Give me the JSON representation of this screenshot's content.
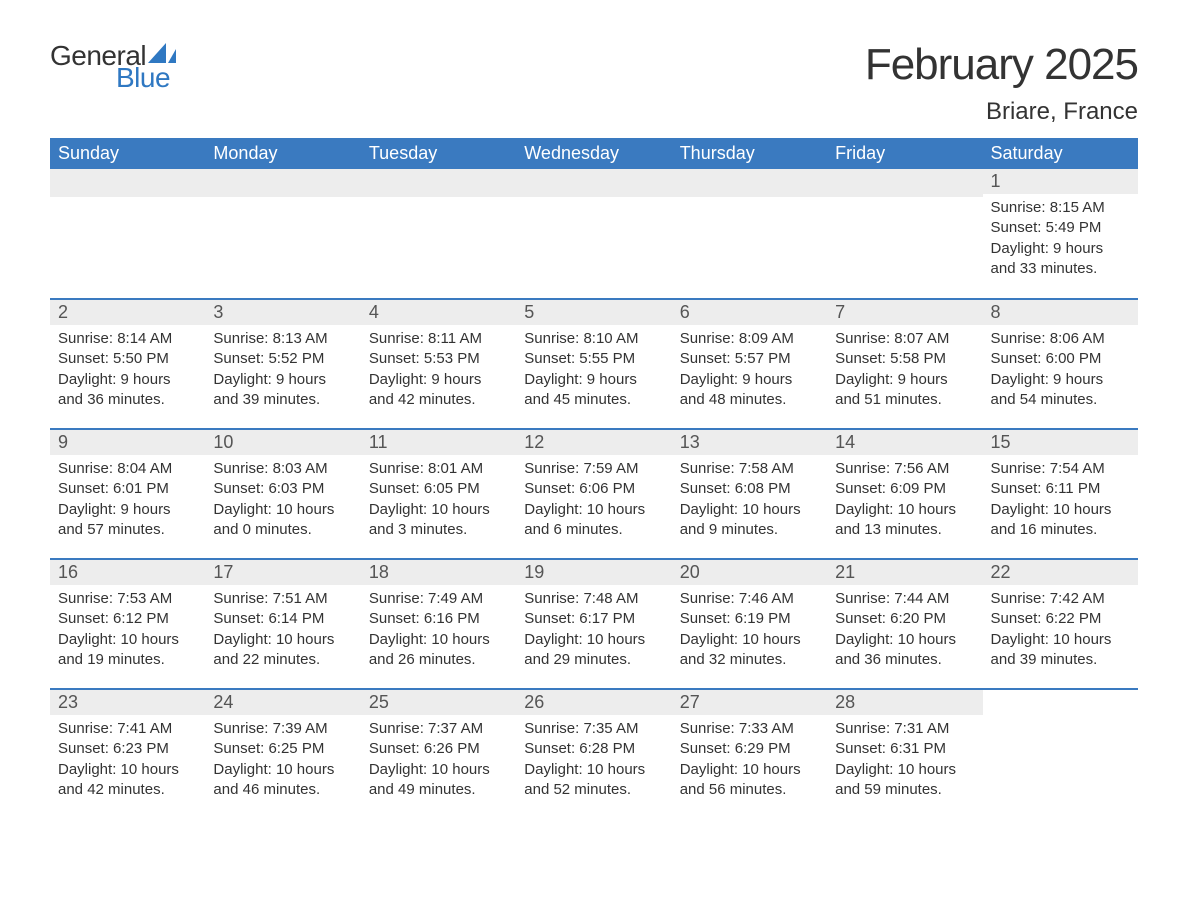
{
  "logo": {
    "text1": "General",
    "text2": "Blue",
    "brand_color": "#2f78c2"
  },
  "title": "February 2025",
  "location": "Briare, France",
  "colors": {
    "header_bg": "#3a7ac0",
    "header_text": "#ffffff",
    "daynum_bg": "#ededed",
    "row_divider": "#3a7ac0",
    "text": "#333333"
  },
  "typography": {
    "title_fontsize": 44,
    "location_fontsize": 24,
    "header_fontsize": 18,
    "daynum_fontsize": 18,
    "body_fontsize": 15
  },
  "layout": {
    "columns": 7,
    "rows": 5
  },
  "weekdays": [
    "Sunday",
    "Monday",
    "Tuesday",
    "Wednesday",
    "Thursday",
    "Friday",
    "Saturday"
  ],
  "labels": {
    "sunrise": "Sunrise:",
    "sunset": "Sunset:",
    "daylight": "Daylight:"
  },
  "weeks": [
    [
      null,
      null,
      null,
      null,
      null,
      null,
      {
        "n": "1",
        "sunrise": "8:15 AM",
        "sunset": "5:49 PM",
        "daylight": "9 hours and 33 minutes."
      }
    ],
    [
      {
        "n": "2",
        "sunrise": "8:14 AM",
        "sunset": "5:50 PM",
        "daylight": "9 hours and 36 minutes."
      },
      {
        "n": "3",
        "sunrise": "8:13 AM",
        "sunset": "5:52 PM",
        "daylight": "9 hours and 39 minutes."
      },
      {
        "n": "4",
        "sunrise": "8:11 AM",
        "sunset": "5:53 PM",
        "daylight": "9 hours and 42 minutes."
      },
      {
        "n": "5",
        "sunrise": "8:10 AM",
        "sunset": "5:55 PM",
        "daylight": "9 hours and 45 minutes."
      },
      {
        "n": "6",
        "sunrise": "8:09 AM",
        "sunset": "5:57 PM",
        "daylight": "9 hours and 48 minutes."
      },
      {
        "n": "7",
        "sunrise": "8:07 AM",
        "sunset": "5:58 PM",
        "daylight": "9 hours and 51 minutes."
      },
      {
        "n": "8",
        "sunrise": "8:06 AM",
        "sunset": "6:00 PM",
        "daylight": "9 hours and 54 minutes."
      }
    ],
    [
      {
        "n": "9",
        "sunrise": "8:04 AM",
        "sunset": "6:01 PM",
        "daylight": "9 hours and 57 minutes."
      },
      {
        "n": "10",
        "sunrise": "8:03 AM",
        "sunset": "6:03 PM",
        "daylight": "10 hours and 0 minutes."
      },
      {
        "n": "11",
        "sunrise": "8:01 AM",
        "sunset": "6:05 PM",
        "daylight": "10 hours and 3 minutes."
      },
      {
        "n": "12",
        "sunrise": "7:59 AM",
        "sunset": "6:06 PM",
        "daylight": "10 hours and 6 minutes."
      },
      {
        "n": "13",
        "sunrise": "7:58 AM",
        "sunset": "6:08 PM",
        "daylight": "10 hours and 9 minutes."
      },
      {
        "n": "14",
        "sunrise": "7:56 AM",
        "sunset": "6:09 PM",
        "daylight": "10 hours and 13 minutes."
      },
      {
        "n": "15",
        "sunrise": "7:54 AM",
        "sunset": "6:11 PM",
        "daylight": "10 hours and 16 minutes."
      }
    ],
    [
      {
        "n": "16",
        "sunrise": "7:53 AM",
        "sunset": "6:12 PM",
        "daylight": "10 hours and 19 minutes."
      },
      {
        "n": "17",
        "sunrise": "7:51 AM",
        "sunset": "6:14 PM",
        "daylight": "10 hours and 22 minutes."
      },
      {
        "n": "18",
        "sunrise": "7:49 AM",
        "sunset": "6:16 PM",
        "daylight": "10 hours and 26 minutes."
      },
      {
        "n": "19",
        "sunrise": "7:48 AM",
        "sunset": "6:17 PM",
        "daylight": "10 hours and 29 minutes."
      },
      {
        "n": "20",
        "sunrise": "7:46 AM",
        "sunset": "6:19 PM",
        "daylight": "10 hours and 32 minutes."
      },
      {
        "n": "21",
        "sunrise": "7:44 AM",
        "sunset": "6:20 PM",
        "daylight": "10 hours and 36 minutes."
      },
      {
        "n": "22",
        "sunrise": "7:42 AM",
        "sunset": "6:22 PM",
        "daylight": "10 hours and 39 minutes."
      }
    ],
    [
      {
        "n": "23",
        "sunrise": "7:41 AM",
        "sunset": "6:23 PM",
        "daylight": "10 hours and 42 minutes."
      },
      {
        "n": "24",
        "sunrise": "7:39 AM",
        "sunset": "6:25 PM",
        "daylight": "10 hours and 46 minutes."
      },
      {
        "n": "25",
        "sunrise": "7:37 AM",
        "sunset": "6:26 PM",
        "daylight": "10 hours and 49 minutes."
      },
      {
        "n": "26",
        "sunrise": "7:35 AM",
        "sunset": "6:28 PM",
        "daylight": "10 hours and 52 minutes."
      },
      {
        "n": "27",
        "sunrise": "7:33 AM",
        "sunset": "6:29 PM",
        "daylight": "10 hours and 56 minutes."
      },
      {
        "n": "28",
        "sunrise": "7:31 AM",
        "sunset": "6:31 PM",
        "daylight": "10 hours and 59 minutes."
      },
      null
    ]
  ]
}
